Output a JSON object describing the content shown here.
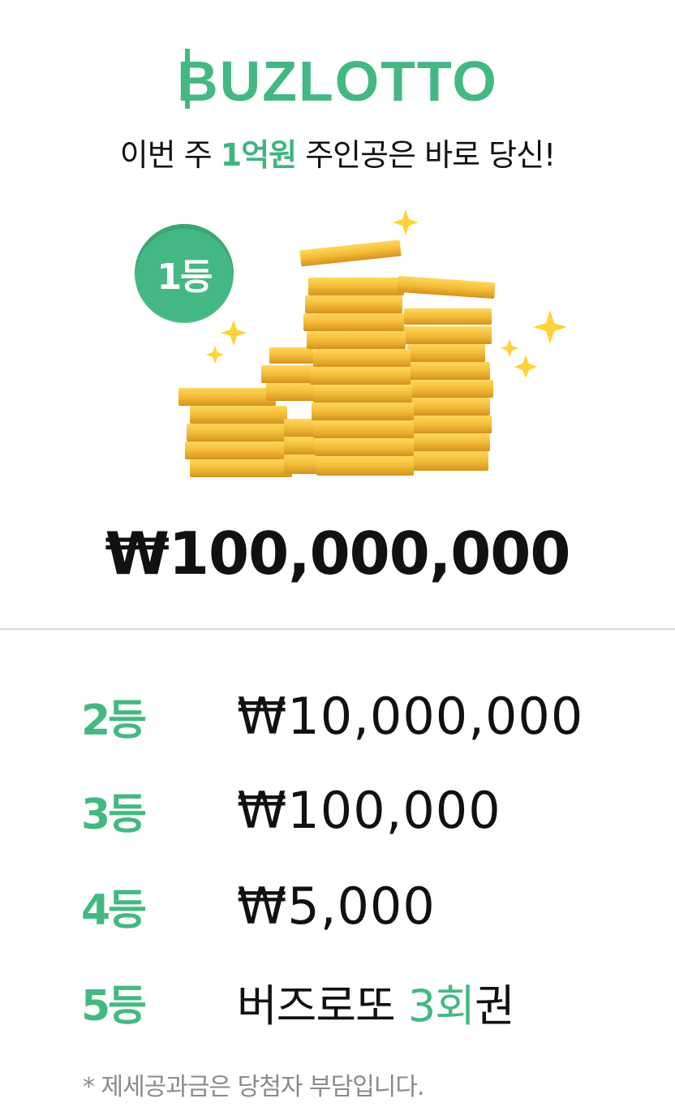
{
  "header": {
    "logo_text": "BUZLOTTO",
    "tagline_pre": "이번 주 ",
    "tagline_highlight": "1억원",
    "tagline_post": " 주인공은 바로 당신!"
  },
  "first_prize": {
    "rank_label": "1등",
    "amount": "₩100,000,000"
  },
  "prizes": [
    {
      "rank": "2등",
      "amount": "₩10,000,000"
    },
    {
      "rank": "3등",
      "amount": "₩100,000"
    },
    {
      "rank": "4등",
      "amount": "₩5,000"
    },
    {
      "rank": "5등",
      "amount_pre": "버즈로또 ",
      "amount_highlight": "3회",
      "amount_post": "권"
    }
  ],
  "footnote": "* 제세공과금은 당첨자 부담입니다.",
  "colors": {
    "brand_green": "#44b882",
    "coin_gold": "#f3bd38",
    "text": "#111111",
    "footnote": "#8a8a8a"
  }
}
